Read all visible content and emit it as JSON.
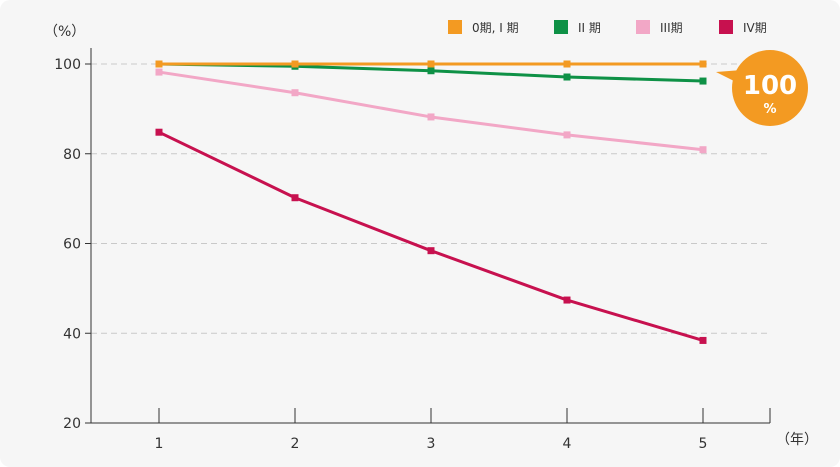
{
  "chart_data": {
    "type": "line",
    "x": [
      1,
      2,
      3,
      4,
      5
    ],
    "x_unit_label": "（年）",
    "y_unit_label": "（%）",
    "yticks": [
      20,
      40,
      60,
      80,
      100
    ],
    "ylim": [
      20,
      100
    ],
    "xlim": [
      0.5,
      5.5
    ],
    "grid": true,
    "legend_position": "top-right",
    "series": [
      {
        "name": "0期, I 期",
        "color": "#f39a22",
        "values": [
          100,
          100,
          100,
          100,
          100
        ]
      },
      {
        "name": "II 期",
        "color": "#0e9146",
        "values": [
          100,
          99.5,
          98.5,
          97.1,
          96.2
        ]
      },
      {
        "name": "III期",
        "color": "#f2a7c6",
        "values": [
          98.2,
          93.6,
          88.2,
          84.2,
          80.9
        ]
      },
      {
        "name": "IV期",
        "color": "#c7114f",
        "values": [
          84.8,
          70.2,
          58.4,
          47.4,
          38.4
        ]
      }
    ],
    "callout": {
      "value": "100",
      "unit": "%",
      "color": "#f39a22"
    }
  }
}
